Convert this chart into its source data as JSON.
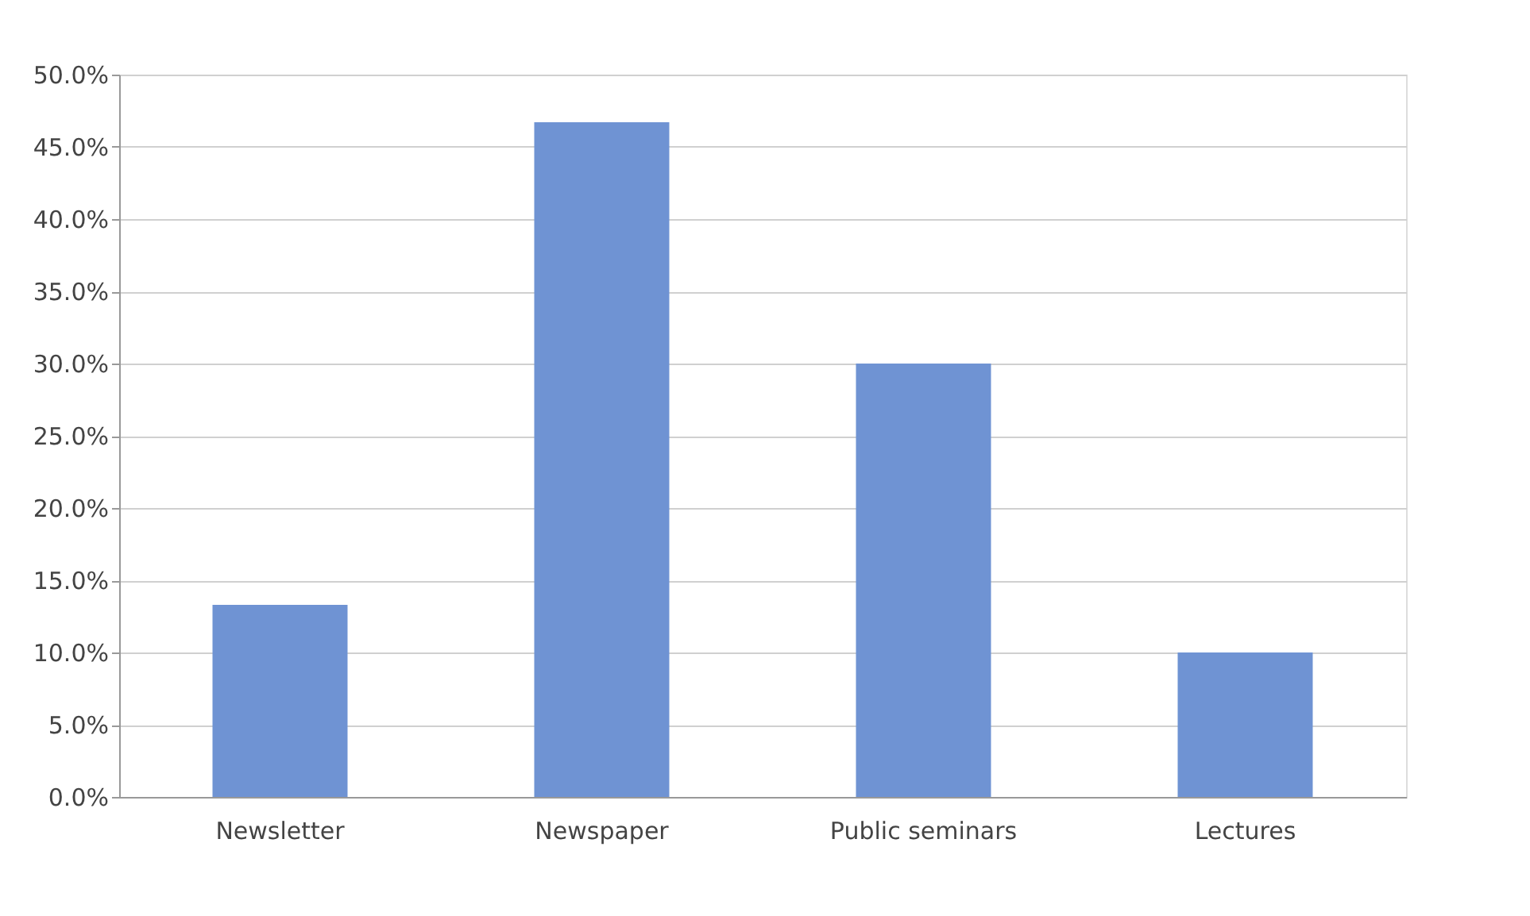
{
  "chart_data": {
    "type": "bar",
    "categories": [
      "Newsletter",
      "Newspaper",
      "Public seminars",
      "Lectures"
    ],
    "values": [
      13.3,
      46.7,
      30.0,
      10.0
    ],
    "color": "#6f93d3",
    "ylim": [
      0,
      50
    ],
    "yticks": [
      {
        "value": 0,
        "label": "0.0%"
      },
      {
        "value": 5,
        "label": "5.0%"
      },
      {
        "value": 10,
        "label": "10.0%"
      },
      {
        "value": 15,
        "label": "15.0%"
      },
      {
        "value": 20,
        "label": "20.0%"
      },
      {
        "value": 25,
        "label": "25.0%"
      },
      {
        "value": 30,
        "label": "30.0%"
      },
      {
        "value": 35,
        "label": "35.0%"
      },
      {
        "value": 40,
        "label": "40.0%"
      },
      {
        "value": 45,
        "label": "45.0%"
      },
      {
        "value": 50,
        "label": "50.0%"
      }
    ],
    "grid": "y"
  }
}
